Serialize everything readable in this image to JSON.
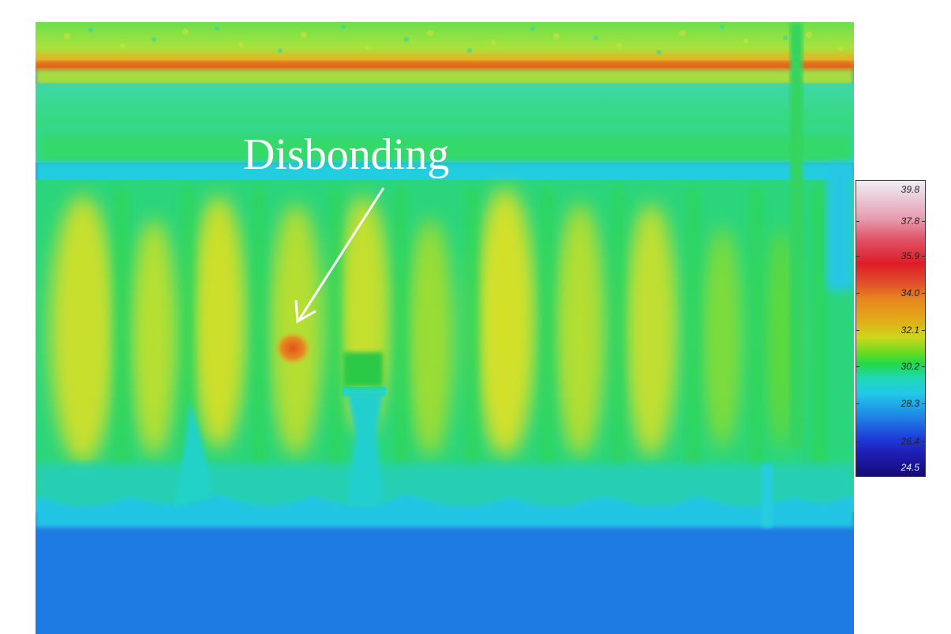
{
  "annotation": {
    "label": "Disbonding"
  },
  "color_scale": {
    "ticks": [
      "39.8",
      "37.8",
      "35.9",
      "34.0",
      "32.1",
      "30.2",
      "28.3",
      "26.4",
      "24.5"
    ]
  },
  "colors": {
    "background": "#1f7de3",
    "seam_hot": "#e07a1f",
    "panel_green": "#4fe04a",
    "panel_yellow": "#c9e12f",
    "hotspot": "#e05a1a",
    "arrow_and_text": "#ffffff"
  }
}
